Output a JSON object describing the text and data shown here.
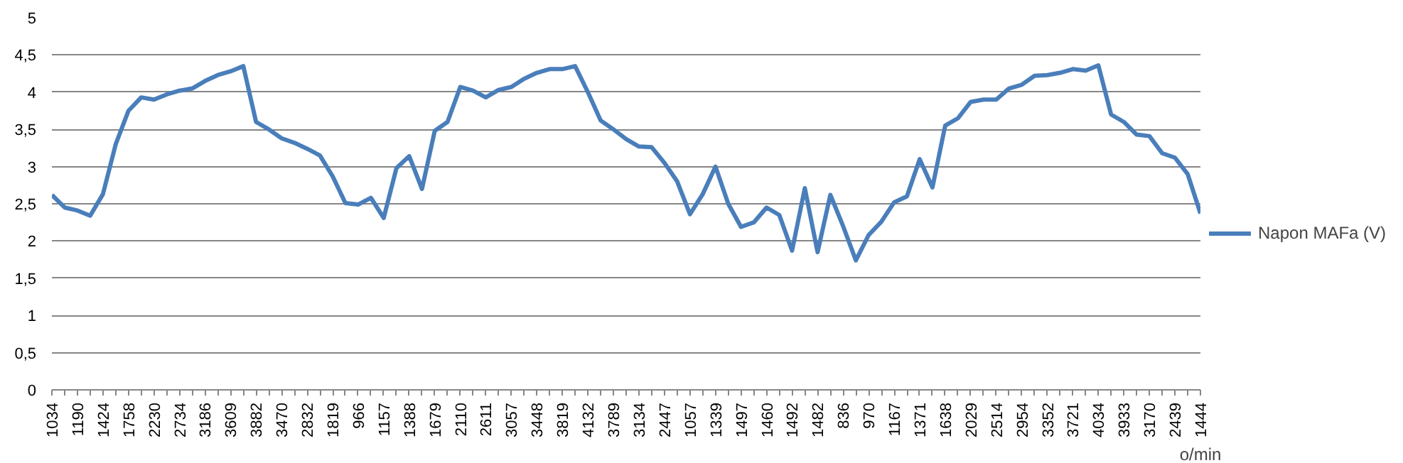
{
  "chart_data": {
    "type": "line",
    "categories": [
      "1034",
      null,
      "1190",
      null,
      "1424",
      null,
      "1758",
      null,
      "2230",
      null,
      "2734",
      null,
      "3186",
      null,
      "3609",
      null,
      "3882",
      null,
      "3470",
      null,
      "2832",
      null,
      "1819",
      null,
      "966",
      null,
      "1157",
      null,
      "1388",
      null,
      "1679",
      null,
      "2110",
      null,
      "2611",
      null,
      "3057",
      null,
      "3448",
      null,
      "3819",
      null,
      "4132",
      null,
      "3789",
      null,
      "3134",
      null,
      "2447",
      null,
      "1057",
      null,
      "1339",
      null,
      "1497",
      null,
      "1460",
      null,
      "1492",
      null,
      "1482",
      null,
      "836",
      null,
      "970",
      null,
      "1167",
      null,
      "1371",
      null,
      "1638",
      null,
      "2029",
      null,
      "2514",
      null,
      "2954",
      null,
      "3352",
      null,
      "3721",
      null,
      "4034",
      null,
      "3933",
      null,
      "3170",
      null,
      "2439",
      null,
      "1444"
    ],
    "series": [
      {
        "name": "Napon MAFa (V)",
        "color": "#4a7ebb",
        "values": [
          2.62,
          2.45,
          2.41,
          2.34,
          2.63,
          3.3,
          3.75,
          3.93,
          3.9,
          3.97,
          4.02,
          4.05,
          4.15,
          4.23,
          4.28,
          4.35,
          3.6,
          3.5,
          3.38,
          3.32,
          3.24,
          3.15,
          2.87,
          2.51,
          2.49,
          2.58,
          2.31,
          2.98,
          3.14,
          2.7,
          3.48,
          3.6,
          4.07,
          4.02,
          3.93,
          4.03,
          4.07,
          4.18,
          4.26,
          4.31,
          4.31,
          4.35,
          4.0,
          3.62,
          3.5,
          3.37,
          3.27,
          3.26,
          3.05,
          2.8,
          2.36,
          2.63,
          3.0,
          2.5,
          2.19,
          2.25,
          2.45,
          2.35,
          1.87,
          2.71,
          1.85,
          2.62,
          2.2,
          1.74,
          2.08,
          2.26,
          2.52,
          2.6,
          3.1,
          2.72,
          3.55,
          3.65,
          3.87,
          3.9,
          3.9,
          4.05,
          4.1,
          4.22,
          4.23,
          4.26,
          4.31,
          4.29,
          4.36,
          3.7,
          3.6,
          3.43,
          3.41,
          3.18,
          3.12,
          2.9,
          2.37
        ]
      }
    ],
    "xlabel": "o/min",
    "ylim": [
      0,
      5
    ],
    "yticks": [
      0,
      {
        "value": 0.5,
        "label": "0,5"
      },
      1,
      {
        "value": 1.5,
        "label": "1,5"
      },
      2,
      {
        "value": 2.5,
        "label": "2,5"
      },
      3,
      {
        "value": 3.5,
        "label": "3,5"
      },
      4,
      {
        "value": 4.5,
        "label": "4,5"
      },
      5
    ],
    "grid": "y",
    "legend": "right",
    "marker": "none",
    "line_style": "solid"
  }
}
